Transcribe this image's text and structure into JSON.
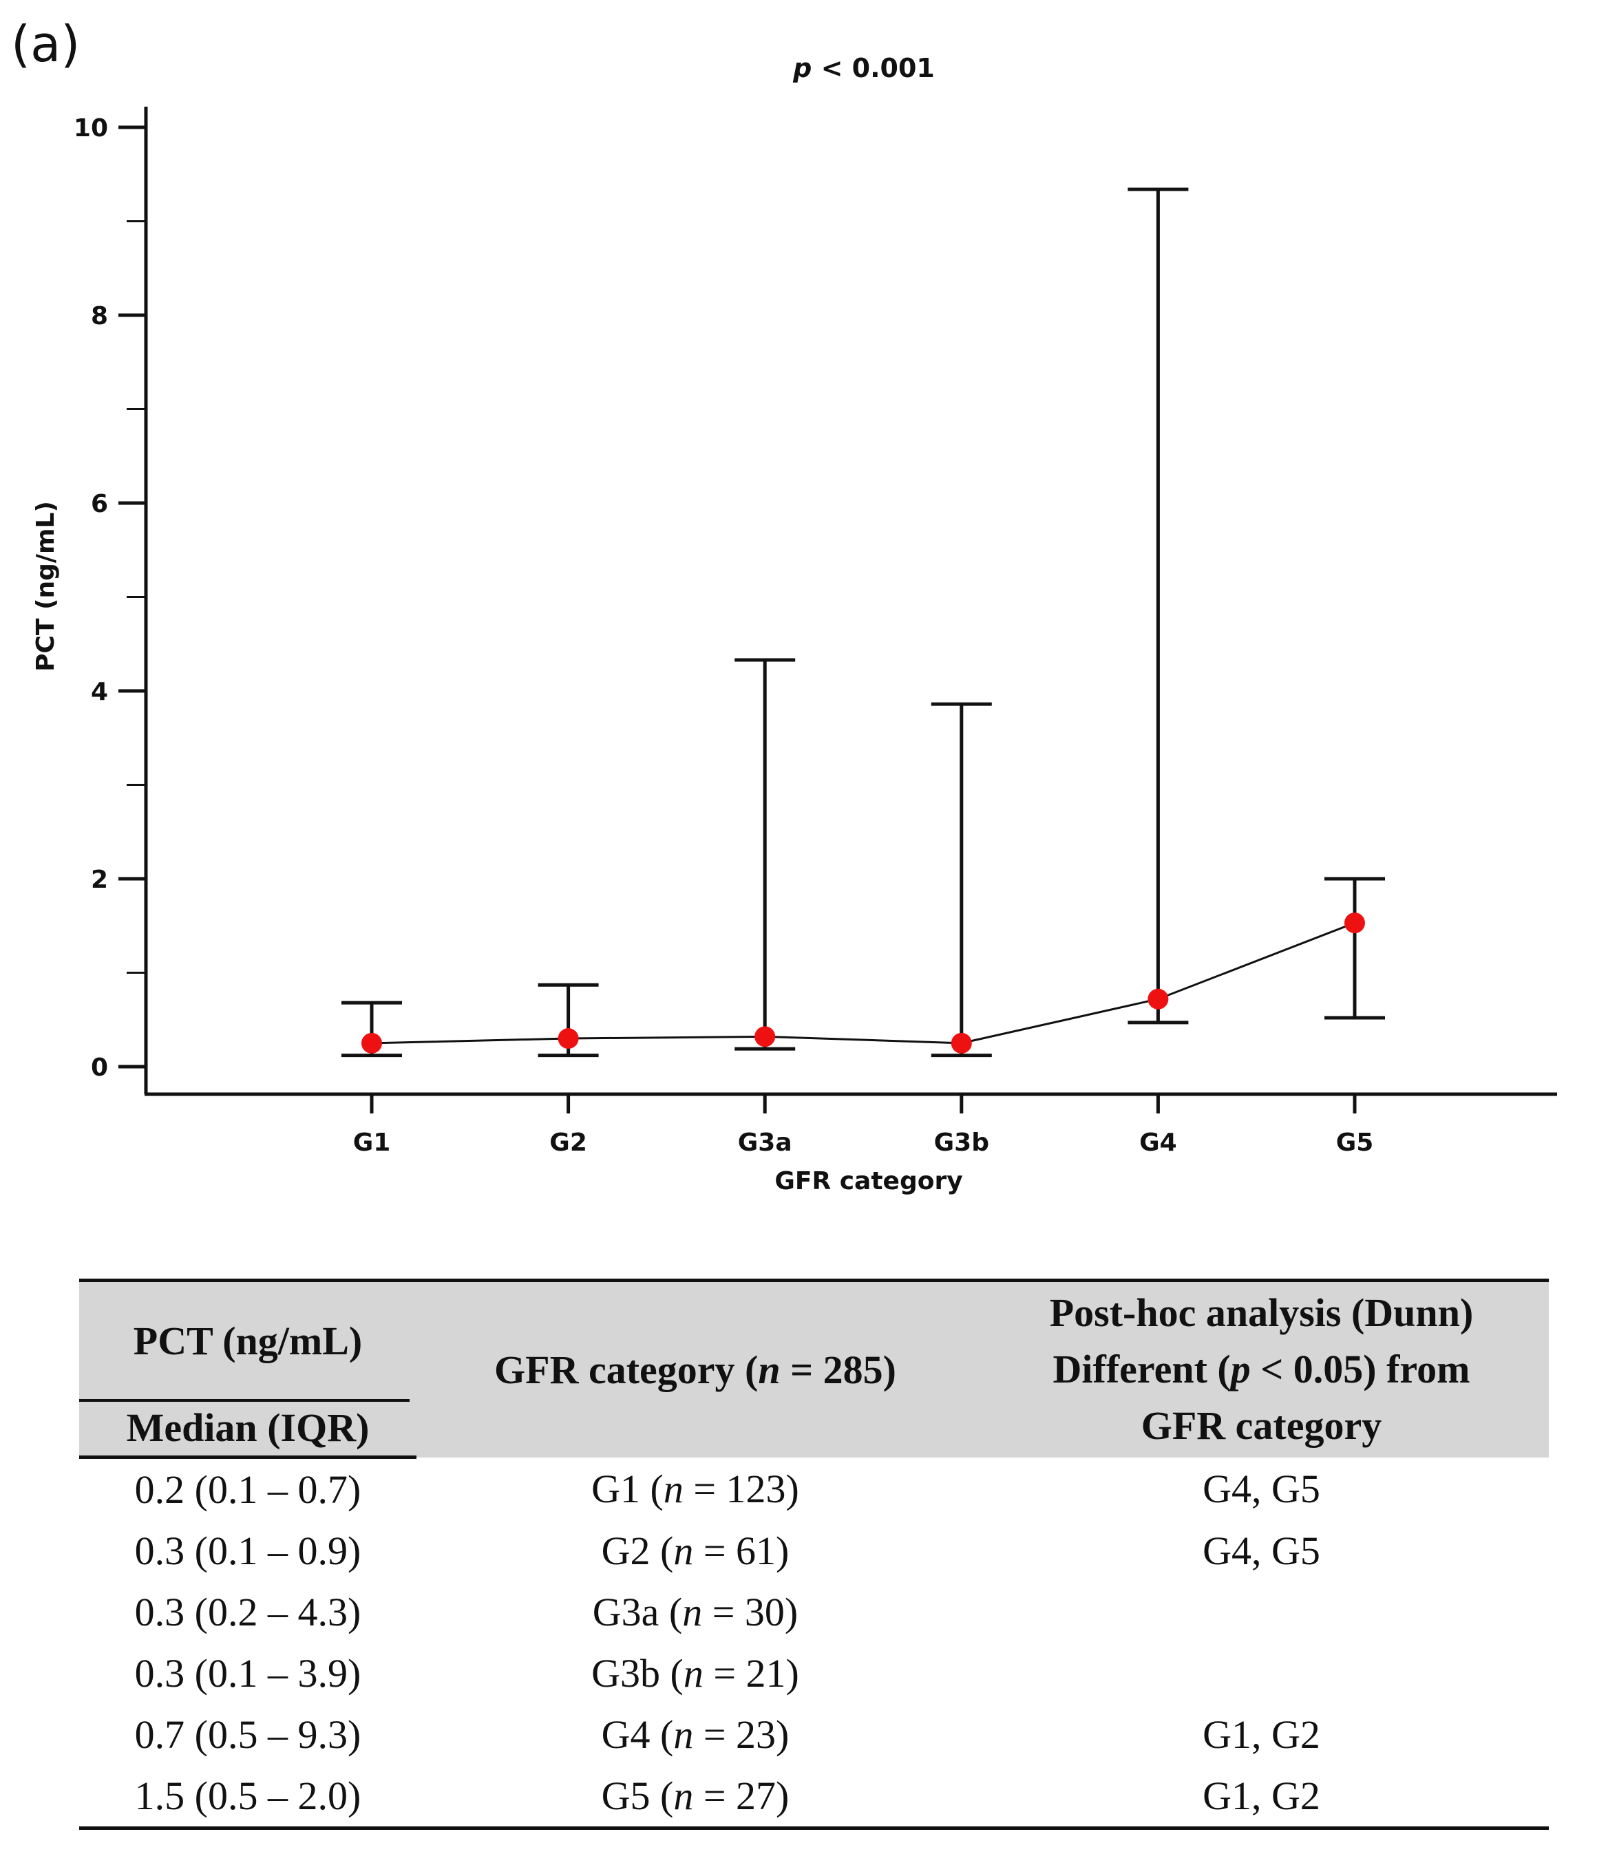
{
  "panel_label": "(a)",
  "chart_data": {
    "type": "error_bar_line",
    "title_prefix": "p",
    "title_suffix": " < 0.001",
    "xlabel": "GFR category",
    "ylabel": "PCT (ng/mL)",
    "ylim": [
      0,
      10
    ],
    "yticks": [
      0,
      2,
      4,
      6,
      8,
      10
    ],
    "categories": [
      "G1",
      "G2",
      "G3a",
      "G3b",
      "G4",
      "G5"
    ],
    "median": [
      0.25,
      0.3,
      0.32,
      0.25,
      0.72,
      1.53
    ],
    "lower": [
      0.12,
      0.12,
      0.19,
      0.12,
      0.47,
      0.52
    ],
    "upper": [
      0.68,
      0.87,
      4.33,
      3.86,
      9.34,
      2.0
    ],
    "marker_color": "#ee1111",
    "line_color": "#111111"
  },
  "table": {
    "header": {
      "pct_label": "PCT (ng/mL)",
      "pct_sub": "Median (IQR)",
      "gfr_prefix": "GFR category (",
      "gfr_n": "n",
      "gfr_suffix": " = 285)",
      "posthoc_line1": "Post-hoc analysis (Dunn)",
      "posthoc_line2_prefix": "Different (",
      "posthoc_line2_p": "p",
      "posthoc_line2_suffix": " < 0.05) from",
      "posthoc_line3": "GFR category"
    },
    "rows": [
      {
        "pct": "0.2 (0.1 – 0.7)",
        "gfr": "G1",
        "n": "123",
        "diff": "G4, G5"
      },
      {
        "pct": "0.3 (0.1 – 0.9)",
        "gfr": "G2",
        "n": "61",
        "diff": "G4, G5"
      },
      {
        "pct": "0.3 (0.2 – 4.3)",
        "gfr": "G3a",
        "n": "30",
        "diff": ""
      },
      {
        "pct": "0.3 (0.1 – 3.9)",
        "gfr": "G3b",
        "n": "21",
        "diff": ""
      },
      {
        "pct": "0.7 (0.5 – 9.3)",
        "gfr": "G4",
        "n": "23",
        "diff": "G1, G2"
      },
      {
        "pct": "1.5 (0.5 – 2.0)",
        "gfr": "G5",
        "n": "27",
        "diff": "G1, G2"
      }
    ]
  }
}
